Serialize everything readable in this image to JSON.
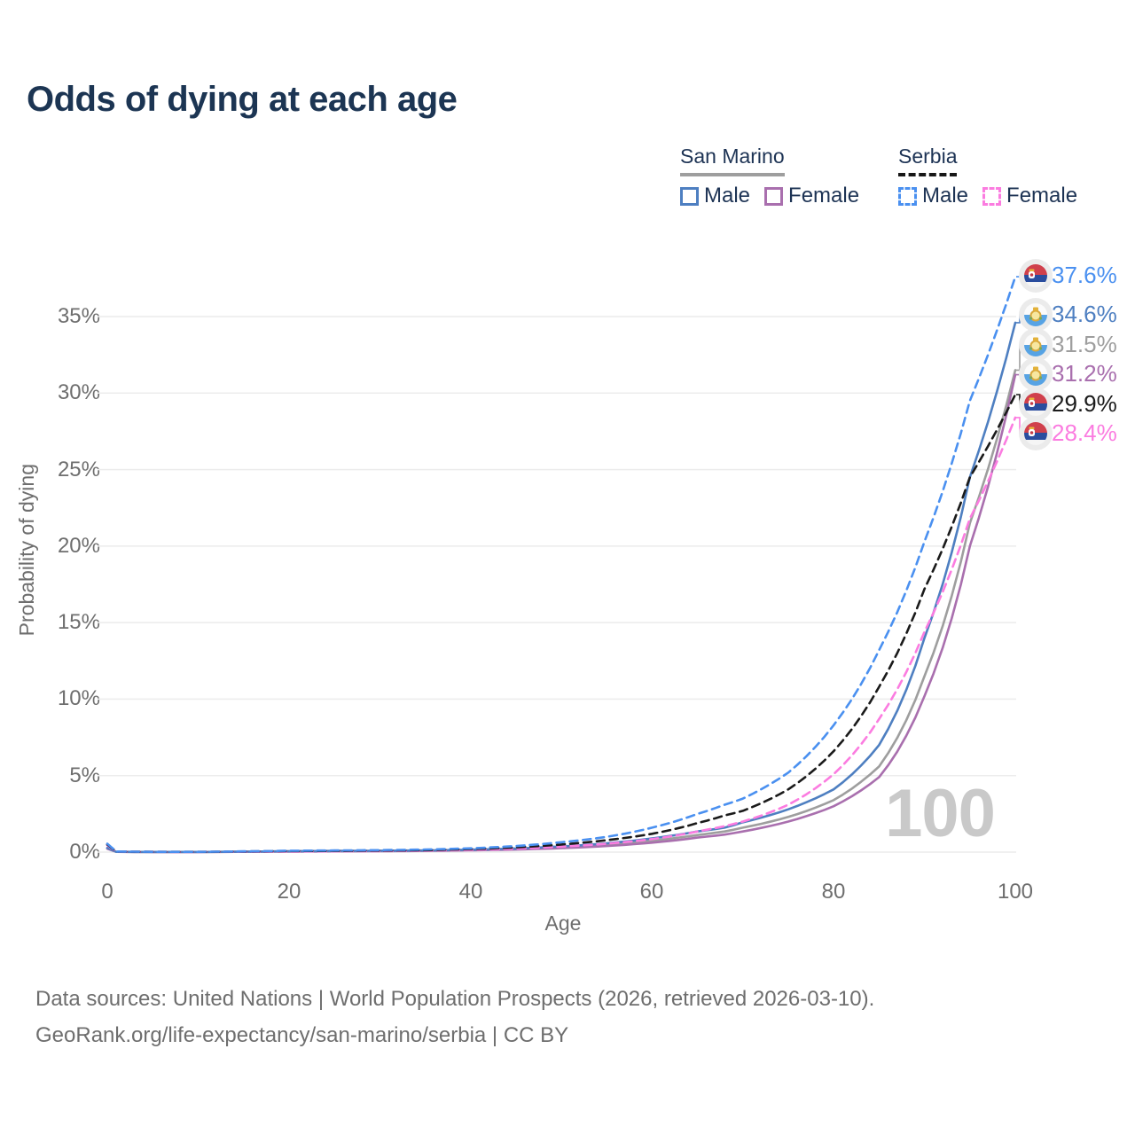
{
  "title": "Odds of dying at each age",
  "legend": {
    "groups": [
      {
        "country": "San Marino",
        "line_style": "solid",
        "items": [
          {
            "label": "Male",
            "color": "#4e7fc1"
          },
          {
            "label": "Female",
            "color": "#a96fae"
          }
        ]
      },
      {
        "country": "Serbia",
        "line_style": "dashed",
        "items": [
          {
            "label": "Male",
            "color": "#4a90f0"
          },
          {
            "label": "Female",
            "color": "#fb7ce0"
          }
        ]
      }
    ]
  },
  "chart_data": {
    "type": "line",
    "title": "Odds of dying at each age",
    "xlabel": "Age",
    "ylabel": "Probability of dying",
    "xlim": [
      0,
      100
    ],
    "ylim": [
      0,
      38
    ],
    "grid": "horizontal",
    "legend_position": "top-right",
    "watermark": "100",
    "x_ticks": [
      {
        "v": 0,
        "label": "0"
      },
      {
        "v": 20,
        "label": "20"
      },
      {
        "v": 40,
        "label": "40"
      },
      {
        "v": 60,
        "label": "60"
      },
      {
        "v": 80,
        "label": "80"
      },
      {
        "v": 100,
        "label": "100"
      }
    ],
    "y_ticks": [
      {
        "v": 0,
        "label": "0%"
      },
      {
        "v": 5,
        "label": "5%"
      },
      {
        "v": 10,
        "label": "10%"
      },
      {
        "v": 15,
        "label": "15%"
      },
      {
        "v": 20,
        "label": "20%"
      },
      {
        "v": 25,
        "label": "25%"
      },
      {
        "v": 30,
        "label": "30%"
      },
      {
        "v": 35,
        "label": "35%"
      }
    ],
    "ages": [
      0,
      1,
      5,
      10,
      15,
      20,
      25,
      30,
      35,
      40,
      45,
      50,
      55,
      60,
      65,
      68,
      70,
      75,
      80,
      85,
      90,
      95,
      100
    ],
    "series": [
      {
        "key": "san-marino-both",
        "name": "San Marino — Both sexes",
        "country": "San Marino",
        "flag": "san-marino",
        "color": "#9e9e9e",
        "dash": false,
        "end_value": 31.5,
        "values": [
          0.25,
          0.018,
          0.009,
          0.009,
          0.025,
          0.05,
          0.065,
          0.075,
          0.095,
          0.14,
          0.2,
          0.31,
          0.48,
          0.75,
          1.12,
          1.35,
          1.6,
          2.3,
          3.4,
          5.6,
          11.5,
          21.5,
          31.5
        ]
      },
      {
        "key": "san-marino-female",
        "name": "San Marino — Female",
        "country": "San Marino",
        "flag": "san-marino",
        "color": "#a96fae",
        "dash": false,
        "end_value": 31.2,
        "values": [
          0.22,
          0.016,
          0.008,
          0.008,
          0.02,
          0.035,
          0.05,
          0.06,
          0.08,
          0.12,
          0.17,
          0.26,
          0.4,
          0.62,
          0.95,
          1.15,
          1.35,
          2.0,
          3.0,
          4.9,
          10.2,
          20.0,
          31.2
        ]
      },
      {
        "key": "san-marino-male",
        "name": "San Marino — Male",
        "country": "San Marino",
        "flag": "san-marino",
        "color": "#4e7fc1",
        "dash": false,
        "end_value": 34.6,
        "values": [
          0.28,
          0.02,
          0.01,
          0.01,
          0.03,
          0.06,
          0.08,
          0.09,
          0.11,
          0.16,
          0.24,
          0.37,
          0.58,
          0.9,
          1.35,
          1.6,
          1.95,
          2.8,
          4.1,
          7.0,
          14.0,
          24.5,
          34.6
        ]
      },
      {
        "key": "serbia-female",
        "name": "Serbia — Female",
        "country": "Serbia",
        "flag": "serbia",
        "color": "#fb7ce0",
        "dash": true,
        "end_value": 28.4,
        "values": [
          0.45,
          0.03,
          0.015,
          0.013,
          0.03,
          0.04,
          0.05,
          0.07,
          0.1,
          0.15,
          0.23,
          0.36,
          0.55,
          0.85,
          1.35,
          1.7,
          2.0,
          3.1,
          5.1,
          8.7,
          14.4,
          21.8,
          28.4
        ]
      },
      {
        "key": "serbia-both",
        "name": "Serbia — Both sexes",
        "country": "Serbia",
        "flag": "serbia",
        "color": "#1a1a1a",
        "dash": true,
        "end_value": 29.9,
        "values": [
          0.5,
          0.035,
          0.018,
          0.015,
          0.04,
          0.07,
          0.08,
          0.1,
          0.13,
          0.2,
          0.31,
          0.5,
          0.78,
          1.2,
          1.9,
          2.4,
          2.7,
          4.1,
          6.6,
          10.8,
          17.2,
          24.5,
          29.9
        ]
      },
      {
        "key": "serbia-male",
        "name": "Serbia — Male",
        "country": "Serbia",
        "flag": "serbia",
        "color": "#4a90f0",
        "dash": true,
        "end_value": 37.6,
        "values": [
          0.55,
          0.04,
          0.02,
          0.02,
          0.05,
          0.09,
          0.11,
          0.13,
          0.17,
          0.25,
          0.4,
          0.65,
          1.0,
          1.6,
          2.5,
          3.1,
          3.5,
          5.2,
          8.3,
          13.2,
          20.3,
          29.5,
          37.6
        ]
      }
    ],
    "end_labels": [
      {
        "series": "serbia-male",
        "text": "37.6%"
      },
      {
        "series": "san-marino-male",
        "text": "34.6%"
      },
      {
        "series": "san-marino-both",
        "text": "31.5%"
      },
      {
        "series": "san-marino-female",
        "text": "31.2%"
      },
      {
        "series": "serbia-both",
        "text": "29.9%"
      },
      {
        "series": "serbia-female",
        "text": "28.4%"
      }
    ]
  },
  "footer": {
    "line1": "Data sources: United Nations | World Population Prospects (2026, retrieved 2026-03-10).",
    "line2": "GeoRank.org/life-expectancy/san-marino/serbia | CC BY"
  },
  "colors": {
    "title": "#1c3553",
    "axis_text": "#6e6e6e",
    "gridline": "#ececec",
    "watermark": "#c9c9c9"
  }
}
